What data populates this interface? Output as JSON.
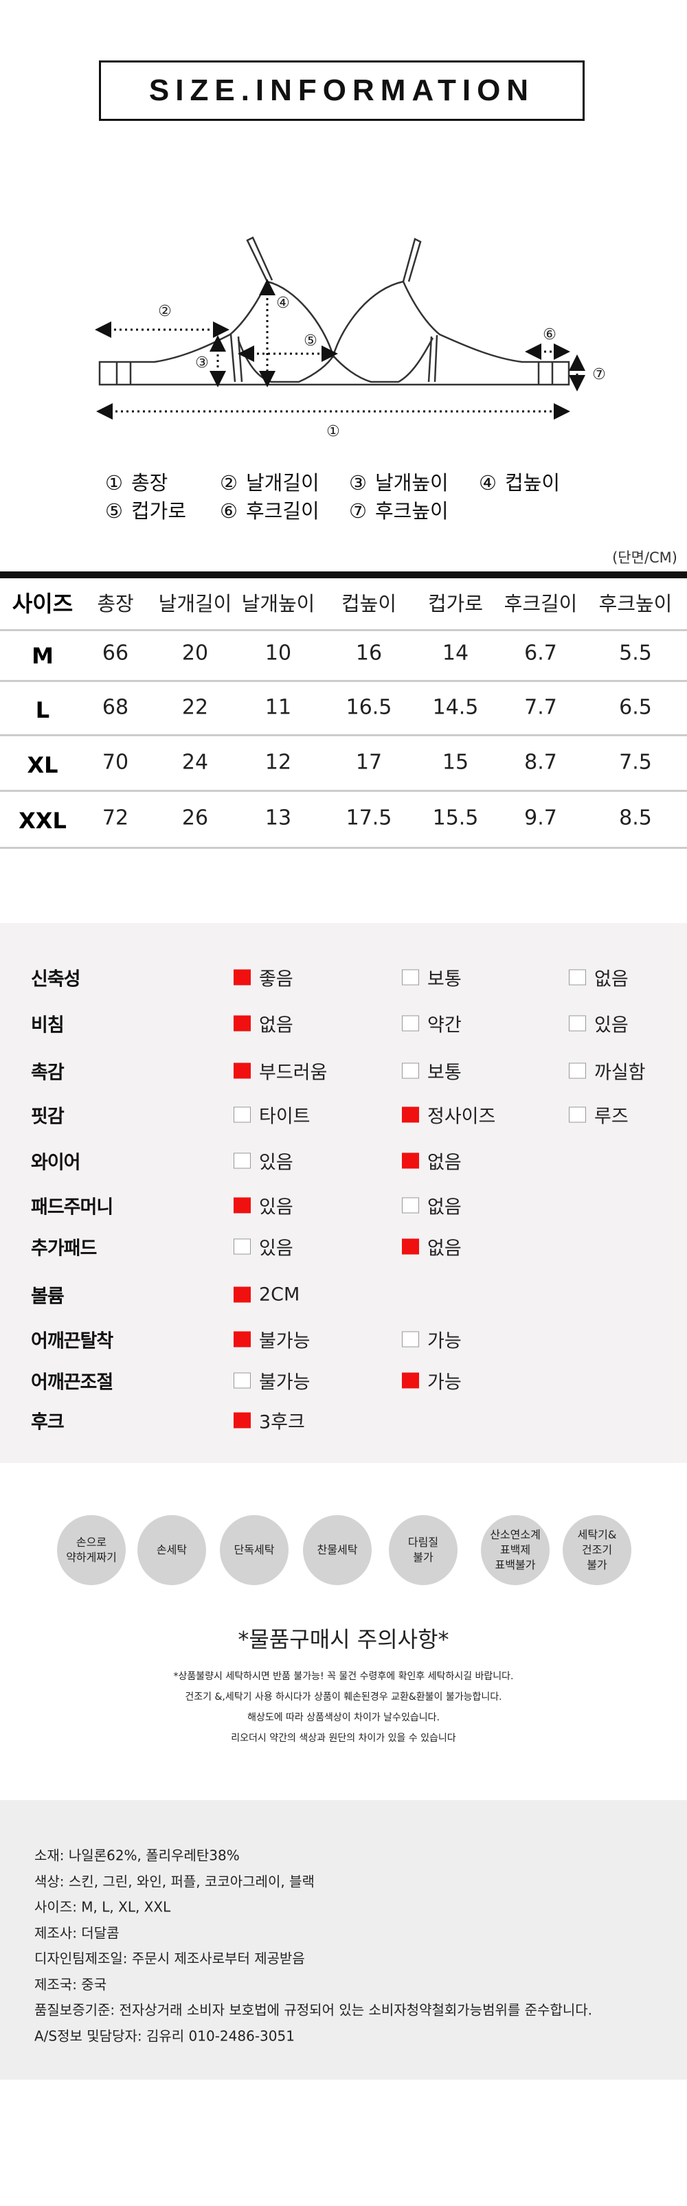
{
  "title": "SIZE.INFORMATION",
  "diagram": {
    "markers": [
      "①",
      "②",
      "③",
      "④",
      "⑤",
      "⑥",
      "⑦"
    ]
  },
  "legend": [
    {
      "num": "①",
      "label": "총장"
    },
    {
      "num": "②",
      "label": "날개길이"
    },
    {
      "num": "③",
      "label": "날개높이"
    },
    {
      "num": "④",
      "label": "컵높이"
    },
    {
      "num": "⑤",
      "label": "컵가로"
    },
    {
      "num": "⑥",
      "label": "후크길이"
    },
    {
      "num": "⑦",
      "label": "후크높이"
    }
  ],
  "unit": "(단면/CM)",
  "table": {
    "headers": [
      "사이즈",
      "총장",
      "날개길이",
      "날개높이",
      "컵높이",
      "컵가로",
      "후크길이",
      "후크높이"
    ],
    "rows": [
      [
        "M",
        "66",
        "20",
        "10",
        "16",
        "14",
        "6.7",
        "5.5"
      ],
      [
        "L",
        "68",
        "22",
        "11",
        "16.5",
        "14.5",
        "7.7",
        "6.5"
      ],
      [
        "XL",
        "70",
        "24",
        "12",
        "17",
        "15",
        "8.7",
        "7.5"
      ],
      [
        "XXL",
        "72",
        "26",
        "13",
        "17.5",
        "15.5",
        "9.7",
        "8.5"
      ]
    ]
  },
  "features": [
    {
      "label": "신축성",
      "options": [
        {
          "text": "좋음",
          "checked": true
        },
        {
          "text": "보통",
          "checked": false
        },
        {
          "text": "없음",
          "checked": false
        }
      ]
    },
    {
      "label": "비침",
      "options": [
        {
          "text": "없음",
          "checked": true
        },
        {
          "text": "약간",
          "checked": false
        },
        {
          "text": "있음",
          "checked": false
        }
      ]
    },
    {
      "label": "촉감",
      "options": [
        {
          "text": "부드러움",
          "checked": true
        },
        {
          "text": "보통",
          "checked": false
        },
        {
          "text": "까실함",
          "checked": false
        }
      ]
    },
    {
      "label": "핏감",
      "options": [
        {
          "text": "타이트",
          "checked": false
        },
        {
          "text": "정사이즈",
          "checked": true
        },
        {
          "text": "루즈",
          "checked": false
        }
      ]
    },
    {
      "label": "와이어",
      "options": [
        {
          "text": "있음",
          "checked": false
        },
        {
          "text": "없음",
          "checked": true
        }
      ]
    },
    {
      "label": "패드주머니",
      "options": [
        {
          "text": "있음",
          "checked": true
        },
        {
          "text": "없음",
          "checked": false
        }
      ]
    },
    {
      "label": "추가패드",
      "options": [
        {
          "text": "있음",
          "checked": false
        },
        {
          "text": "없음",
          "checked": true
        }
      ]
    },
    {
      "label": "볼륨",
      "options": [
        {
          "text": "2CM",
          "checked": true
        }
      ]
    },
    {
      "label": "어깨끈탈착",
      "options": [
        {
          "text": "불가능",
          "checked": true
        },
        {
          "text": "가능",
          "checked": false
        }
      ]
    },
    {
      "label": "어깨끈조절",
      "options": [
        {
          "text": "불가능",
          "checked": false
        },
        {
          "text": "가능",
          "checked": true
        }
      ]
    },
    {
      "label": "후크",
      "options": [
        {
          "text": "3후크",
          "checked": true
        }
      ]
    }
  ],
  "colors": {
    "checked": "#f01010",
    "feature_bg": "#f4f2f3",
    "info_bg": "#eeeeee",
    "icon_bg": "#d3d3d3"
  },
  "care_icons": [
    "손으로\n약하게짜기",
    "손세탁",
    "단독세탁",
    "찬물세탁",
    "다림질\n불가",
    "산소연소계\n표백제\n표백불가",
    "세탁기&\n건조기\n불가"
  ],
  "care_title": "*물품구매시 주의사항*",
  "notes": [
    "*상품불량시 세탁하시면 반품 불가능! 꼭 물건 수령후에 확인후 세탁하시길 바랍니다.",
    "건조기 &,세탁기 사용 하시다가 상품이 훼손된경우 교환&환불이 불가능합니다.",
    "해상도에 따라 상품색상이 차이가 날수있습니다.",
    "리오더시 약간의 색상과 원단의 차이가 있을 수 있습니다"
  ],
  "info": [
    "소재:  나일론62%, 폴리우레탄38%",
    "색상: 스킨, 그린, 와인, 퍼플, 코코아그레이, 블랙",
    "사이즈: M, L, XL, XXL",
    "제조사: 더달콤",
    "디자인팀제조일: 주문시 제조사로부터 제공받음",
    "제조국: 중국",
    "품질보증기준: 전자상거래 소비자 보호법에 규정되어 있는 소비자청약철회가능범위를 준수합니다.",
    "A/S정보 및담당자: 김유리 010-2486-3051"
  ]
}
